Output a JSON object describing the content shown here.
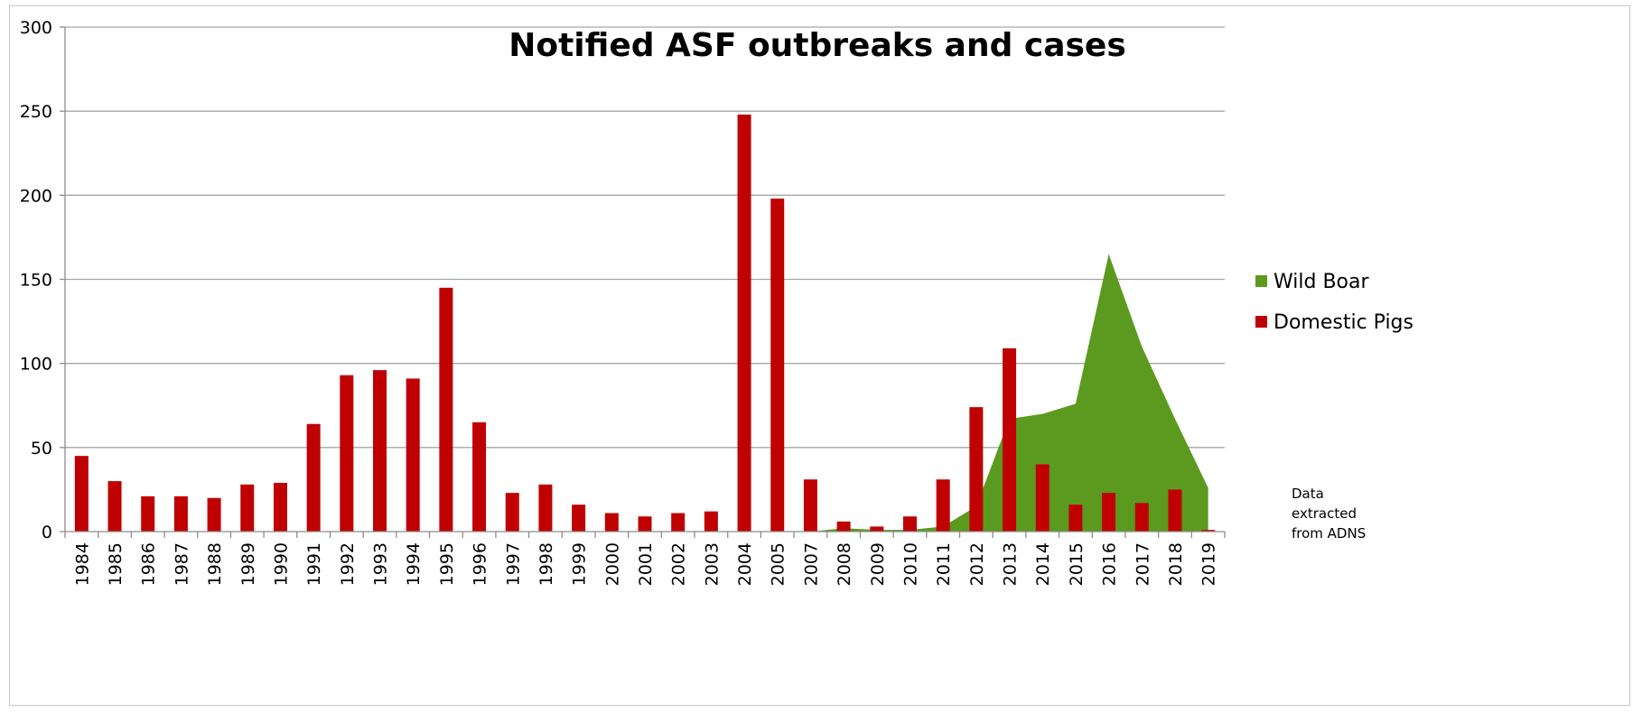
{
  "chart_data": {
    "type": "bar",
    "title": "Notified ASF outbreaks and cases",
    "xlabel": "",
    "ylabel": "",
    "ylim": [
      0,
      300
    ],
    "yticks": [
      0,
      50,
      100,
      150,
      200,
      250,
      300
    ],
    "grid": true,
    "legend_position": "right",
    "categories": [
      "1984",
      "1985",
      "1986",
      "1987",
      "1988",
      "1989",
      "1990",
      "1991",
      "1992",
      "1993",
      "1994",
      "1995",
      "1996",
      "1997",
      "1998",
      "1999",
      "2000",
      "2001",
      "2002",
      "2003",
      "2004",
      "2005",
      "2007",
      "2008",
      "2009",
      "2010",
      "2011",
      "2012",
      "2013",
      "2014",
      "2015",
      "2016",
      "2017",
      "2018",
      "2019"
    ],
    "series": [
      {
        "name": "Wild Boar",
        "type": "area",
        "color": "#5b9a1e",
        "values": [
          0,
          0,
          0,
          0,
          0,
          0,
          0,
          0,
          0,
          0,
          0,
          0,
          0,
          0,
          0,
          0,
          0,
          0,
          0,
          0,
          0,
          0,
          0,
          2,
          1,
          1,
          3,
          15,
          67,
          70,
          76,
          165,
          110,
          67,
          26
        ]
      },
      {
        "name": "Domestic Pigs",
        "type": "bar",
        "color": "#c00000",
        "values": [
          45,
          30,
          21,
          21,
          20,
          28,
          29,
          64,
          93,
          96,
          91,
          145,
          65,
          23,
          28,
          16,
          11,
          9,
          11,
          12,
          248,
          198,
          31,
          6,
          3,
          9,
          31,
          74,
          109,
          40,
          16,
          23,
          17,
          25,
          1
        ]
      }
    ],
    "annotation": [
      "Data",
      "extracted",
      "from ADNS"
    ]
  }
}
